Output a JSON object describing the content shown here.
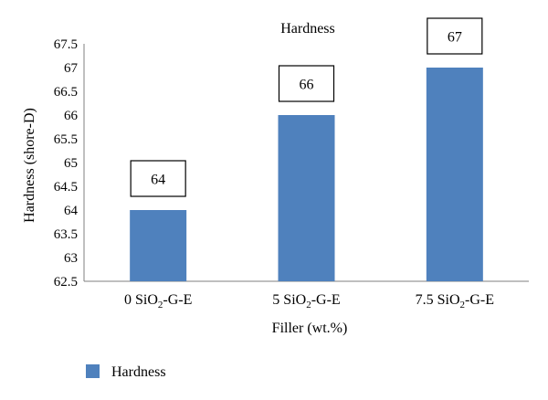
{
  "chart_data": {
    "type": "bar",
    "title": "Hardness",
    "xlabel": "Filler (wt.%)",
    "ylabel": "Hardness (shore-D)",
    "categories": [
      {
        "pre": "0 SiO",
        "sub": "2",
        "post": "-G-E"
      },
      {
        "pre": "5 SiO",
        "sub": "2",
        "post": "-G-E"
      },
      {
        "pre": "7.5 SiO",
        "sub": "2",
        "post": "-G-E"
      }
    ],
    "series": [
      {
        "name": "Hardness",
        "values": [
          64,
          66,
          67
        ],
        "color": "#4f81bd"
      }
    ],
    "data_labels": [
      "64",
      "66",
      "67"
    ],
    "ylim": [
      62.5,
      67.5
    ],
    "yticks": [
      "62.5",
      "63",
      "63.5",
      "64",
      "64.5",
      "65",
      "65.5",
      "66",
      "66.5",
      "67",
      "67.5"
    ],
    "grid": false,
    "legend_position": "bottom-left"
  }
}
